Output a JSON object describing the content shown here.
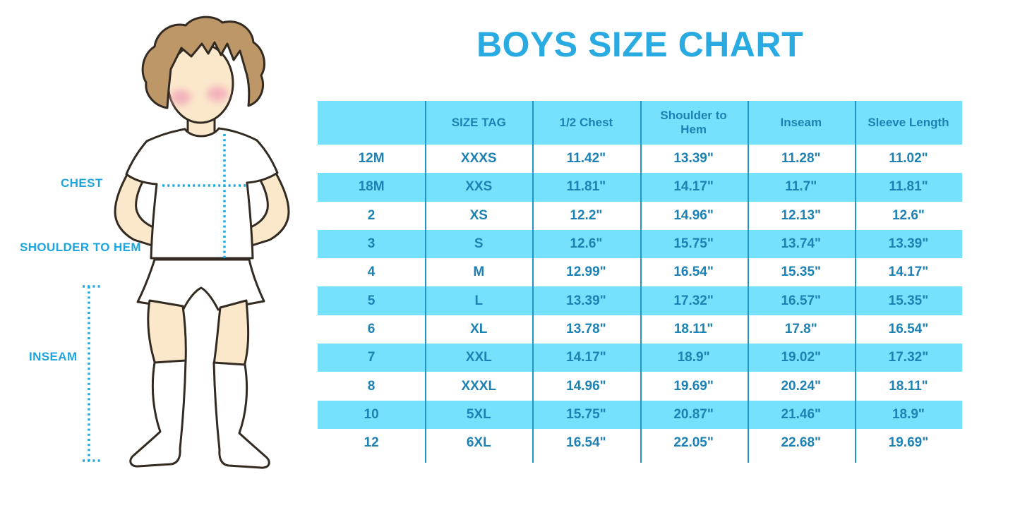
{
  "page": {
    "title": "BOYS SIZE CHART"
  },
  "figure": {
    "description": "boy-figure-illustration",
    "labels": {
      "chest": "CHEST",
      "shoulder_to_hem": "SHOULDER TO HEM",
      "inseam": "INSEAM"
    }
  },
  "chart_data": {
    "type": "table",
    "title": "BOYS SIZE CHART",
    "columns": [
      "",
      "SIZE TAG",
      "1/2 Chest",
      "Shoulder to Hem",
      "Inseam",
      "Sleeve Length"
    ],
    "rows": [
      [
        "12M",
        "XXXS",
        "11.42\"",
        "13.39\"",
        "11.28\"",
        "11.02\""
      ],
      [
        "18M",
        "XXS",
        "11.81\"",
        "14.17\"",
        "11.7\"",
        "11.81\""
      ],
      [
        "2",
        "XS",
        "12.2\"",
        "14.96\"",
        "12.13\"",
        "12.6\""
      ],
      [
        "3",
        "S",
        "12.6\"",
        "15.75\"",
        "13.74\"",
        "13.39\""
      ],
      [
        "4",
        "M",
        "12.99\"",
        "16.54\"",
        "15.35\"",
        "14.17\""
      ],
      [
        "5",
        "L",
        "13.39\"",
        "17.32\"",
        "16.57\"",
        "15.35\""
      ],
      [
        "6",
        "XL",
        "13.78\"",
        "18.11\"",
        "17.8\"",
        "16.54\""
      ],
      [
        "7",
        "XXL",
        "14.17\"",
        "18.9\"",
        "19.02\"",
        "17.32\""
      ],
      [
        "8",
        "XXXL",
        "14.96\"",
        "19.69\"",
        "20.24\"",
        "18.11\""
      ],
      [
        "10",
        "5XL",
        "15.75\"",
        "20.87\"",
        "21.46\"",
        "18.9\""
      ],
      [
        "12",
        "6XL",
        "16.54\"",
        "22.05\"",
        "22.68\"",
        "19.69\""
      ]
    ],
    "layout": {
      "striped": true,
      "header_background": "#76E1FC",
      "stripe_background": "#76E1FC",
      "first_data_row_background": "#FFFFFF",
      "divider_color": "#2095C8",
      "text_color": "#1D82B3"
    }
  },
  "colors": {
    "accent_title": "#29ABE2",
    "measure_line": "#1BAAE4",
    "label_text": "#1BA4DE",
    "hair": "#BE9769",
    "skin": "#FBE8CB",
    "cheek": "#F1A6B8",
    "outline": "#332B22"
  }
}
